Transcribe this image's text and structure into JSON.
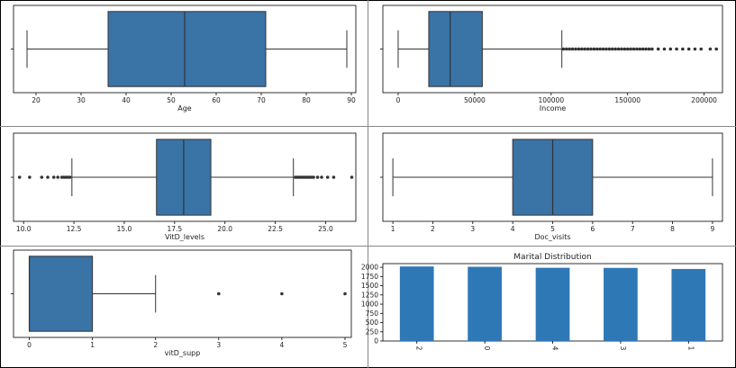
{
  "chart_data": [
    {
      "type": "box",
      "xlabel": "Age",
      "xlim": [
        15,
        91
      ],
      "ticks": [
        20,
        30,
        40,
        50,
        60,
        70,
        80,
        90
      ],
      "whisker_low": 18,
      "q1": 36,
      "median": 53,
      "q3": 71,
      "whisker_high": 89,
      "fliers": []
    },
    {
      "type": "box",
      "xlabel": "Income",
      "xlim": [
        -10000,
        212000
      ],
      "ticks": [
        0,
        50000,
        100000,
        150000,
        200000
      ],
      "whisker_low": 0,
      "q1": 20000,
      "median": 34000,
      "q3": 55000,
      "whisker_high": 107000,
      "fliers": [
        108000,
        110000,
        112000,
        114000,
        116000,
        118000,
        120000,
        122000,
        124000,
        126000,
        128000,
        130000,
        132000,
        134000,
        136000,
        138000,
        140000,
        142000,
        144000,
        146000,
        148000,
        150000,
        152000,
        154000,
        156000,
        158000,
        160000,
        162000,
        164000,
        166000,
        170000,
        174000,
        178000,
        182000,
        186000,
        190000,
        194000,
        198000,
        204000,
        208000
      ]
    },
    {
      "type": "box",
      "xlabel": "VitD_levels",
      "xlim": [
        9.5,
        26.5
      ],
      "ticks": [
        10.0,
        12.5,
        15.0,
        17.5,
        20.0,
        22.5,
        25.0
      ],
      "tick_labels": [
        "10.0",
        "12.5",
        "15.0",
        "17.5",
        "20.0",
        "22.5",
        "25.0"
      ],
      "whisker_low": 12.4,
      "q1": 16.6,
      "median": 17.95,
      "q3": 19.3,
      "whisker_high": 23.4,
      "fliers": [
        9.8,
        10.3,
        10.9,
        11.2,
        11.5,
        11.7,
        11.9,
        12.0,
        12.1,
        12.2,
        12.3,
        23.5,
        23.6,
        23.7,
        23.8,
        23.9,
        24.0,
        24.1,
        24.2,
        24.3,
        24.4,
        24.6,
        24.8,
        25.1,
        25.4,
        26.3
      ]
    },
    {
      "type": "box",
      "xlabel": "Doc_visits",
      "xlim": [
        0.75,
        9.25
      ],
      "ticks": [
        1,
        2,
        3,
        4,
        5,
        6,
        7,
        8,
        9
      ],
      "whisker_low": 1,
      "q1": 4,
      "median": 5,
      "q3": 6,
      "whisker_high": 9,
      "fliers": []
    },
    {
      "type": "box",
      "xlabel": "vitD_supp",
      "xlim": [
        -0.25,
        5.1
      ],
      "ticks": [
        0,
        1,
        2,
        3,
        4,
        5
      ],
      "whisker_low": 0,
      "q1": 0,
      "median": 0,
      "q3": 1,
      "whisker_high": 2,
      "fliers": [
        3,
        4,
        5
      ]
    },
    {
      "type": "bar",
      "title": "Marital Distribution",
      "categories": [
        "2",
        "0",
        "4",
        "3",
        "1"
      ],
      "values": [
        2023,
        2014,
        1987,
        1984,
        1955
      ],
      "ylim": [
        0,
        2100
      ],
      "yticks": [
        0,
        250,
        500,
        750,
        1000,
        1250,
        1500,
        1750,
        2000
      ],
      "tick_rotation": 90,
      "color": "#2f78b6"
    }
  ],
  "colors": {
    "box_fill": "#3a73a6",
    "bar_fill": "#2f78b6",
    "line": "#333333"
  }
}
